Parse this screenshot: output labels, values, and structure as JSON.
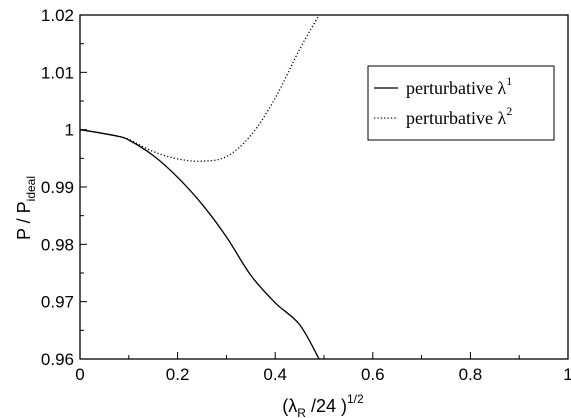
{
  "chart_data": {
    "type": "line",
    "title": "",
    "xlabel": {
      "base": "(λ",
      "sub": "R",
      "mid": " /24 )",
      "sup": "1/2"
    },
    "ylabel": {
      "base": "P / P",
      "sub": "ideal"
    },
    "xlim": [
      0,
      1
    ],
    "ylim": [
      0.96,
      1.02
    ],
    "x_ticks": [
      0,
      0.2,
      0.4,
      0.6,
      0.8,
      1
    ],
    "x_tick_labels": [
      "0",
      "0.2",
      "0.4",
      "0.6",
      "0.8",
      "1"
    ],
    "y_ticks": [
      0.96,
      0.97,
      0.98,
      0.99,
      1,
      1.01,
      1.02
    ],
    "y_tick_labels": [
      "0.96",
      "0.97",
      "0.98",
      "0.99",
      "1",
      "1.01",
      "1.02"
    ],
    "grid": false,
    "legend_position": "top-right",
    "series": [
      {
        "name": "perturbative λ",
        "name_sup": "1",
        "style": "solid",
        "color": "#000000",
        "x": [
          0,
          0.05,
          0.08,
          0.1,
          0.15,
          0.2,
          0.25,
          0.3,
          0.35,
          0.4,
          0.45,
          0.49
        ],
        "y": [
          1.0,
          0.9993,
          0.9988,
          0.9982,
          0.9955,
          0.9917,
          0.987,
          0.9813,
          0.9746,
          0.9698,
          0.966,
          0.96
        ]
      },
      {
        "name": "perturbative λ",
        "name_sup": "2",
        "style": "dotted",
        "color": "#000000",
        "x": [
          0,
          0.05,
          0.08,
          0.1,
          0.15,
          0.2,
          0.25,
          0.3,
          0.35,
          0.4,
          0.45,
          0.49
        ],
        "y": [
          1.0,
          0.9993,
          0.9988,
          0.9983,
          0.9962,
          0.9949,
          0.9945,
          0.9953,
          0.999,
          1.0055,
          1.014,
          1.02
        ]
      }
    ]
  }
}
